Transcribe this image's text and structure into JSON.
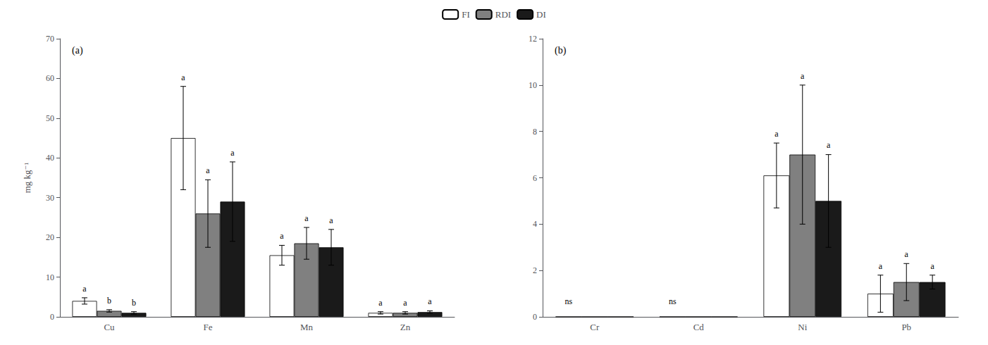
{
  "chart_data": [
    {
      "type": "bar",
      "title": "(a)",
      "ylabel": "mg kg⁻¹",
      "categories": [
        "Cu",
        "Fe",
        "Mn",
        "Zn"
      ],
      "series": [
        {
          "name": "FI",
          "color": "#ffffff",
          "values": [
            4.0,
            45.0,
            15.5,
            1.0
          ],
          "errors": [
            0.8,
            13.0,
            2.5,
            0.3
          ],
          "annotations": [
            "a",
            "a",
            "a",
            "a"
          ]
        },
        {
          "name": "RDI",
          "color": "#808080",
          "values": [
            1.5,
            26.0,
            18.5,
            1.0
          ],
          "errors": [
            0.3,
            8.5,
            4.0,
            0.3
          ],
          "annotations": [
            "b",
            "a",
            "a",
            "a"
          ]
        },
        {
          "name": "DI",
          "color": "#1a1a1a",
          "values": [
            1.0,
            29.0,
            17.5,
            1.2
          ],
          "errors": [
            0.3,
            10.0,
            4.5,
            0.3
          ],
          "annotations": [
            "b",
            "a",
            "a",
            "a"
          ]
        }
      ],
      "ylim": [
        0,
        70
      ],
      "yticks": [
        0,
        10,
        20,
        30,
        40,
        50,
        60,
        70
      ],
      "grid": false,
      "legend": "top"
    },
    {
      "type": "bar",
      "title": "(b)",
      "categories": [
        "Cr",
        "Cd",
        "Ni",
        "Pb"
      ],
      "series": [
        {
          "name": "FI",
          "color": "#ffffff",
          "values": [
            0.0,
            0.0,
            6.1,
            1.0
          ],
          "errors": [
            0.0,
            0.0,
            1.4,
            0.8
          ],
          "annotations": [
            "ns",
            "ns",
            "a",
            "a"
          ]
        },
        {
          "name": "RDI",
          "color": "#808080",
          "values": [
            0.0,
            0.0,
            7.0,
            1.5
          ],
          "errors": [
            0.0,
            0.0,
            3.0,
            0.8
          ],
          "annotations": [
            null,
            null,
            "a",
            "a"
          ]
        },
        {
          "name": "DI",
          "color": "#1a1a1a",
          "values": [
            0.0,
            0.0,
            5.0,
            1.5
          ],
          "errors": [
            0.0,
            0.0,
            2.0,
            0.3
          ],
          "annotations": [
            null,
            null,
            "a",
            "a"
          ]
        }
      ],
      "ylim": [
        0,
        12
      ],
      "yticks": [
        0,
        2,
        4,
        6,
        8,
        10,
        12
      ],
      "grid": false
    }
  ]
}
